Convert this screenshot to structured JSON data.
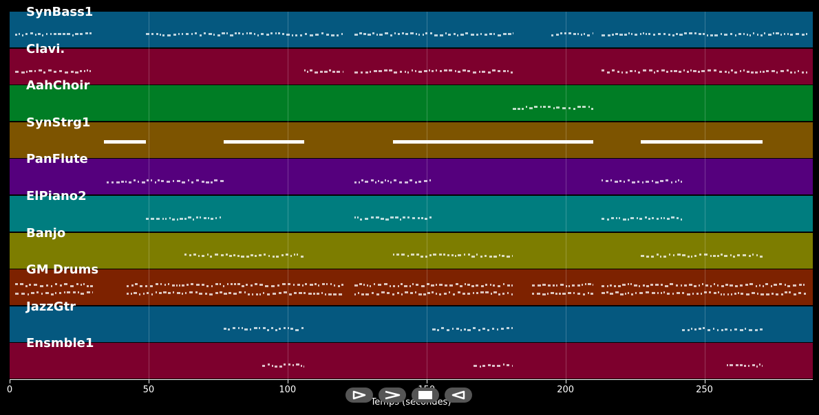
{
  "tracks": [
    {
      "name": "SynBass1",
      "color": "#05587f",
      "notes": [
        [
          2,
          30
        ],
        [
          49,
          120
        ],
        [
          124,
          181
        ],
        [
          195,
          210
        ],
        [
          213,
          287
        ]
      ]
    },
    {
      "name": "Clavi.",
      "color": "#7d002d",
      "notes": [
        [
          2,
          30
        ],
        [
          106,
          120
        ],
        [
          124,
          181
        ],
        [
          213,
          287
        ]
      ]
    },
    {
      "name": "AahChoir",
      "color": "#007d25",
      "notes": [
        [
          181,
          210
        ]
      ]
    },
    {
      "name": "SynStrg1",
      "color": "#7d5400",
      "notes": [
        [
          34,
          49
        ],
        [
          77,
          106
        ],
        [
          138,
          210
        ],
        [
          227,
          271
        ]
      ]
    },
    {
      "name": "PanFlute",
      "color": "#55007d",
      "notes": [
        [
          35,
          77
        ],
        [
          124,
          152
        ],
        [
          213,
          242
        ]
      ]
    },
    {
      "name": "ElPiano2",
      "color": "#007d7f",
      "notes": [
        [
          49,
          77
        ],
        [
          124,
          152
        ],
        [
          213,
          242
        ]
      ]
    },
    {
      "name": "Banjo",
      "color": "#7d7d00",
      "notes": [
        [
          63,
          106
        ],
        [
          138,
          181
        ],
        [
          227,
          271
        ]
      ]
    },
    {
      "name": "GM Drums",
      "color": "#7d2200",
      "notes": [
        [
          2,
          30
        ],
        [
          42,
          120
        ],
        [
          124,
          181
        ],
        [
          188,
          210
        ],
        [
          213,
          287
        ]
      ]
    },
    {
      "name": "JazzGtr",
      "color": "#05587f",
      "notes": [
        [
          77,
          106
        ],
        [
          152,
          181
        ],
        [
          242,
          271
        ]
      ]
    },
    {
      "name": "Ensmble1",
      "color": "#7d002d",
      "notes": [
        [
          91,
          106
        ],
        [
          167,
          181
        ],
        [
          258,
          271
        ]
      ]
    }
  ],
  "x_axis": {
    "label": "Temps (secondes)",
    "min": 0,
    "max": 289,
    "ticks": [
      0,
      50,
      100,
      150,
      200,
      250
    ]
  },
  "controls": [
    {
      "name": "play-icon",
      "label": "play"
    },
    {
      "name": "forward-icon",
      "label": "next"
    },
    {
      "name": "stop-icon",
      "label": "stop"
    },
    {
      "name": "back-icon",
      "label": "previous"
    }
  ]
}
